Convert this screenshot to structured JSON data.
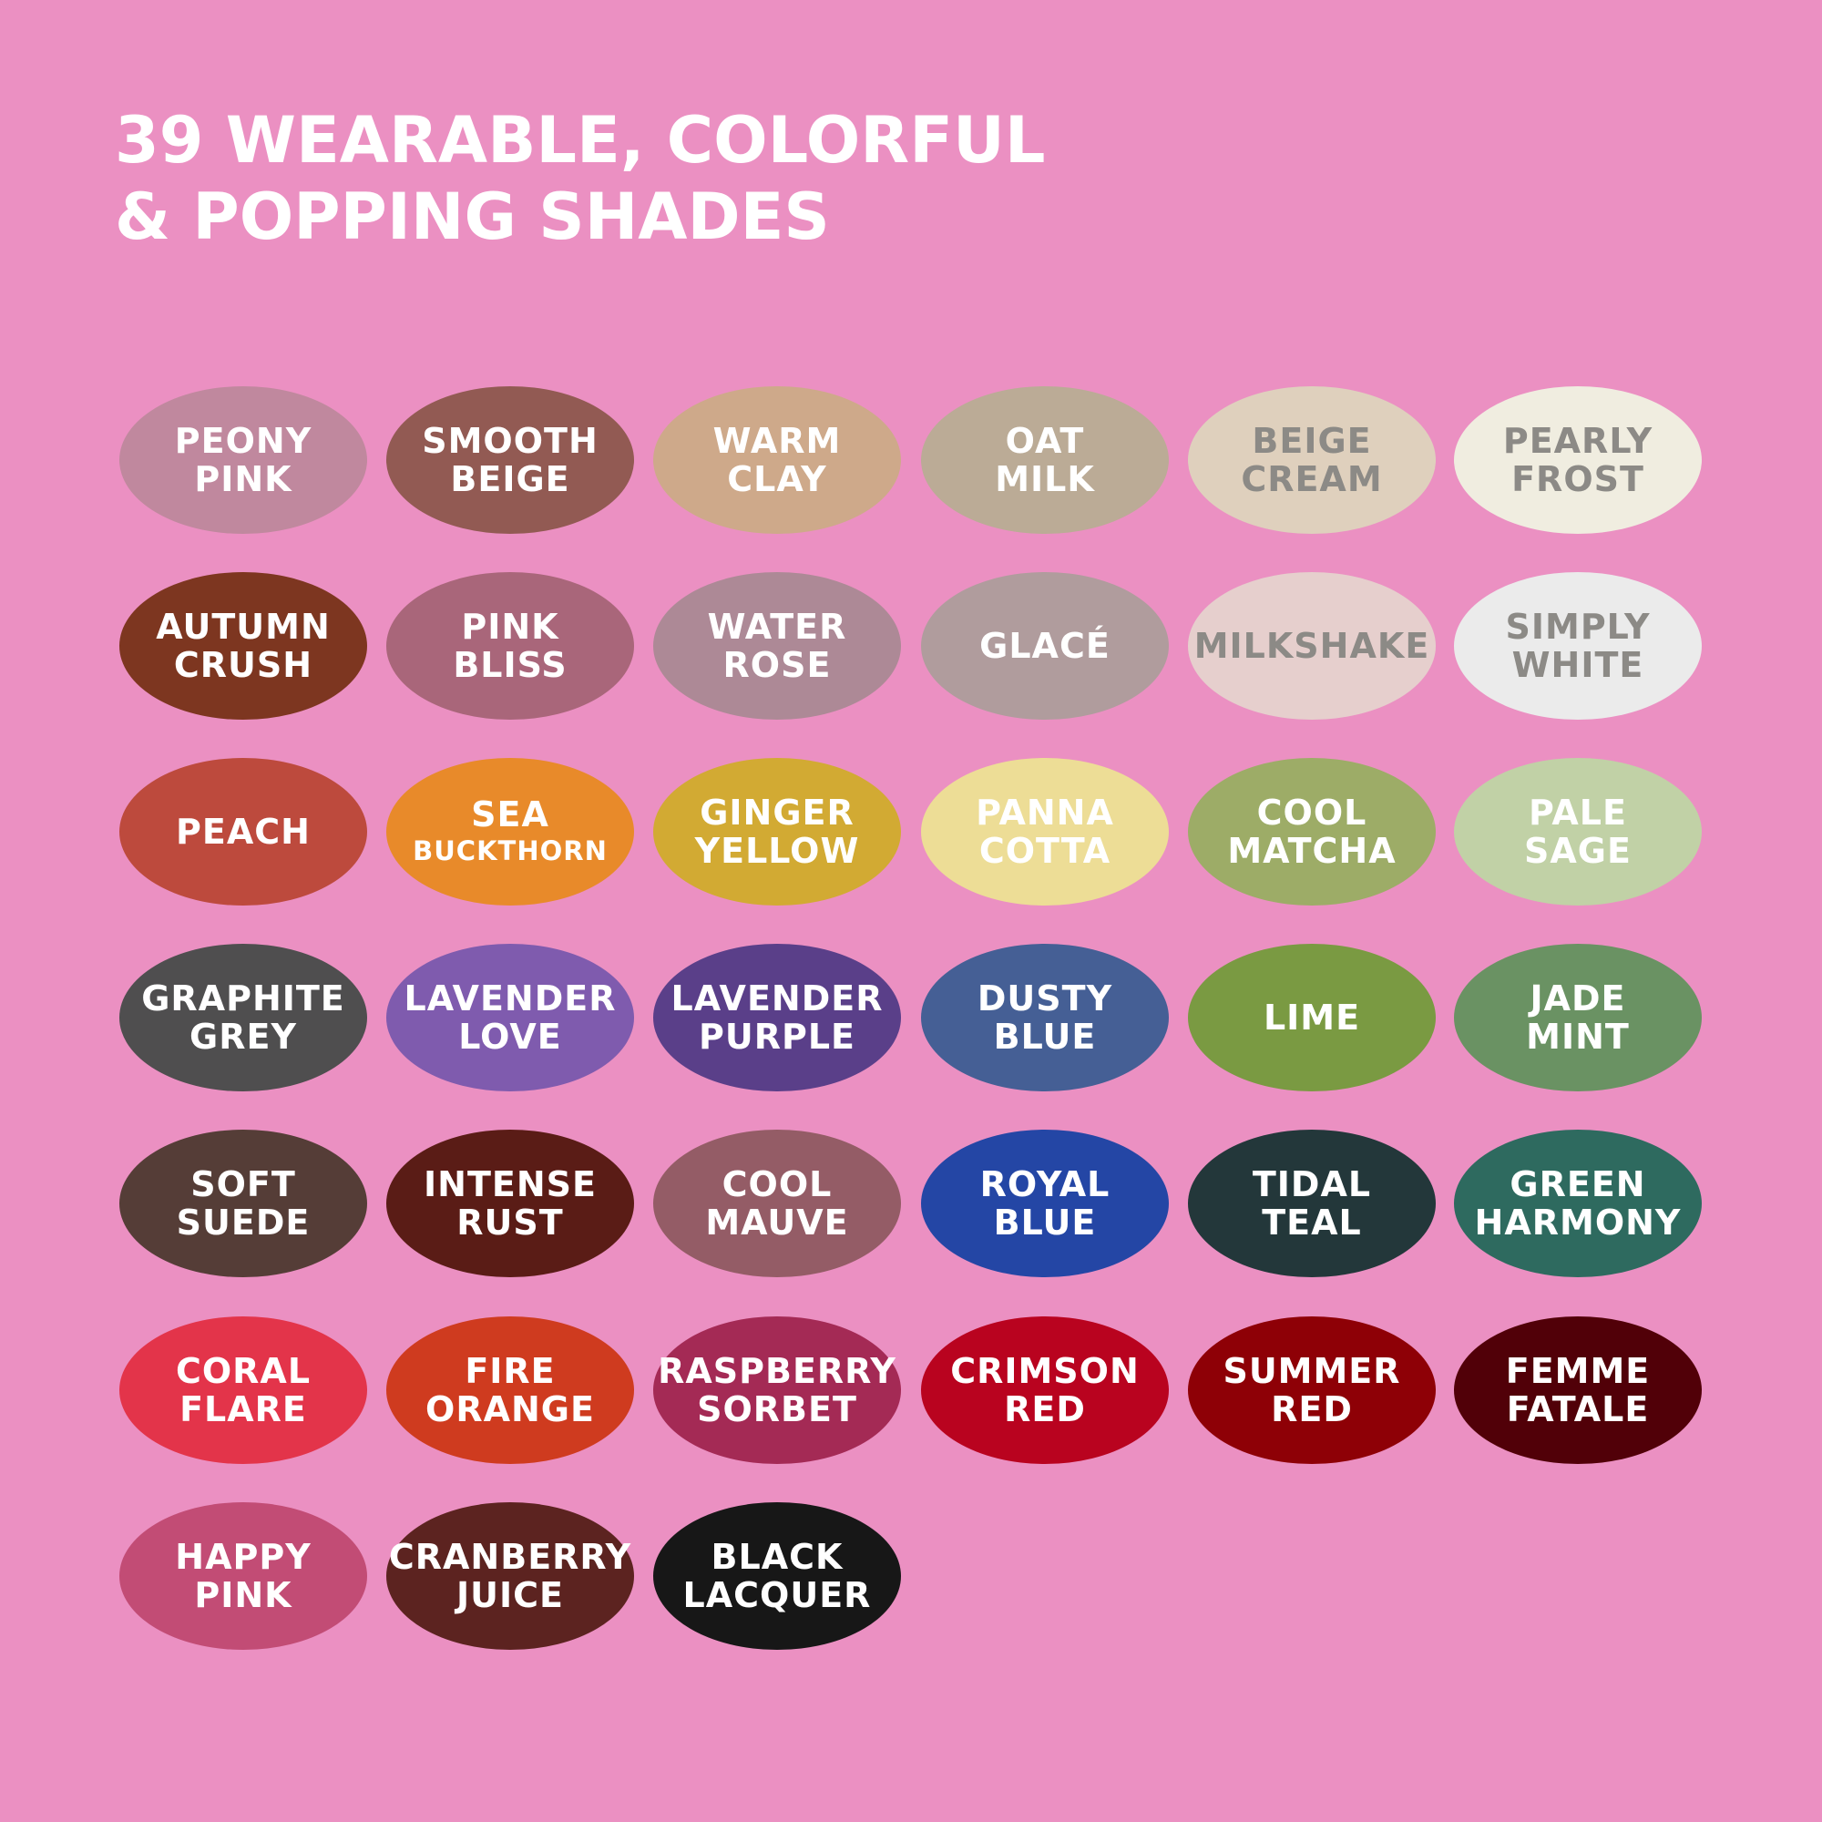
{
  "title": {
    "line1": "39 WEARABLE, COLORFUL",
    "line2": "& POPPING SHADES"
  },
  "background_color": "#eb90c2",
  "shades": [
    {
      "lines": [
        "PEONY",
        "PINK"
      ],
      "color": "#c0889e",
      "text": "#ffffff"
    },
    {
      "lines": [
        "SMOOTH",
        "BEIGE"
      ],
      "color": "#925a53",
      "text": "#ffffff"
    },
    {
      "lines": [
        "WARM",
        "CLAY"
      ],
      "color": "#cea98a",
      "text": "#ffffff"
    },
    {
      "lines": [
        "OAT",
        "MILK"
      ],
      "color": "#bbab96",
      "text": "#ffffff"
    },
    {
      "lines": [
        "BEIGE",
        "CREAM"
      ],
      "color": "#dfd0bd",
      "text": "#8c8a86"
    },
    {
      "lines": [
        "PEARLY",
        "FROST"
      ],
      "color": "#f0ede0",
      "text": "#8c8a86"
    },
    {
      "lines": [
        "AUTUMN",
        "CRUSH"
      ],
      "color": "#7d3620",
      "text": "#ffffff"
    },
    {
      "lines": [
        "PINK",
        "BLISS"
      ],
      "color": "#a9667a",
      "text": "#ffffff"
    },
    {
      "lines": [
        "WATER",
        "ROSE"
      ],
      "color": "#ad8996",
      "text": "#ffffff"
    },
    {
      "lines": [
        "GLACÉ"
      ],
      "color": "#b09c9d",
      "text": "#ffffff"
    },
    {
      "lines": [
        "MILKSHAKE"
      ],
      "color": "#e6cfcd",
      "text": "#8c8a86"
    },
    {
      "lines": [
        "SIMPLY",
        "WHITE"
      ],
      "color": "#ebebeb",
      "text": "#8c8a86"
    },
    {
      "lines": [
        "PEACH"
      ],
      "color": "#bd4a3d",
      "text": "#ffffff"
    },
    {
      "lines": [
        "SEA",
        "BUCKTHORN"
      ],
      "color": "#e88a2a",
      "text": "#ffffff",
      "small_second": true
    },
    {
      "lines": [
        "GINGER",
        "YELLOW"
      ],
      "color": "#d2aa33",
      "text": "#ffffff"
    },
    {
      "lines": [
        "PANNA",
        "COTTA"
      ],
      "color": "#eddd96",
      "text": "#ffffff"
    },
    {
      "lines": [
        "COOL",
        "MATCHA"
      ],
      "color": "#9dac67",
      "text": "#ffffff"
    },
    {
      "lines": [
        "PALE",
        "SAGE"
      ],
      "color": "#c1d1a6",
      "text": "#ffffff"
    },
    {
      "lines": [
        "GRAPHITE",
        "GREY"
      ],
      "color": "#4f4e4f",
      "text": "#ffffff"
    },
    {
      "lines": [
        "LAVENDER",
        "LOVE"
      ],
      "color": "#7f5bae",
      "text": "#ffffff"
    },
    {
      "lines": [
        "LAVENDER",
        "PURPLE"
      ],
      "color": "#5a3f89",
      "text": "#ffffff"
    },
    {
      "lines": [
        "DUSTY",
        "BLUE"
      ],
      "color": "#455f95",
      "text": "#ffffff"
    },
    {
      "lines": [
        "LIME"
      ],
      "color": "#7a9a42",
      "text": "#ffffff"
    },
    {
      "lines": [
        "JADE",
        "MINT"
      ],
      "color": "#6a9263",
      "text": "#ffffff"
    },
    {
      "lines": [
        "SOFT",
        "SUEDE"
      ],
      "color": "#553d37",
      "text": "#ffffff"
    },
    {
      "lines": [
        "INTENSE",
        "RUST"
      ],
      "color": "#5a1c16",
      "text": "#ffffff"
    },
    {
      "lines": [
        "COOL",
        "MAUVE"
      ],
      "color": "#945c66",
      "text": "#ffffff"
    },
    {
      "lines": [
        "ROYAL",
        "BLUE"
      ],
      "color": "#2446a5",
      "text": "#ffffff"
    },
    {
      "lines": [
        "TIDAL",
        "TEAL"
      ],
      "color": "#23373a",
      "text": "#ffffff"
    },
    {
      "lines": [
        "GREEN",
        "HARMONY"
      ],
      "color": "#2e6a5f",
      "text": "#ffffff"
    },
    {
      "lines": [
        "CORAL",
        "FLARE"
      ],
      "color": "#e3344a",
      "text": "#ffffff"
    },
    {
      "lines": [
        "FIRE",
        "ORANGE"
      ],
      "color": "#cf3b1f",
      "text": "#ffffff"
    },
    {
      "lines": [
        "RASPBERRY",
        "SORBET"
      ],
      "color": "#a42a55",
      "text": "#ffffff"
    },
    {
      "lines": [
        "CRIMSON",
        "RED"
      ],
      "color": "#b9031f",
      "text": "#ffffff"
    },
    {
      "lines": [
        "SUMMER",
        "RED"
      ],
      "color": "#8e0006",
      "text": "#ffffff"
    },
    {
      "lines": [
        "FEMME",
        "FATALE"
      ],
      "color": "#510008",
      "text": "#ffffff"
    },
    {
      "lines": [
        "HAPPY",
        "PINK"
      ],
      "color": "#c24c75",
      "text": "#ffffff"
    },
    {
      "lines": [
        "CRANBERRY",
        "JUICE"
      ],
      "color": "#5c2320",
      "text": "#ffffff"
    },
    {
      "lines": [
        "BLACK",
        "LACQUER"
      ],
      "color": "#171717",
      "text": "#ffffff"
    }
  ]
}
